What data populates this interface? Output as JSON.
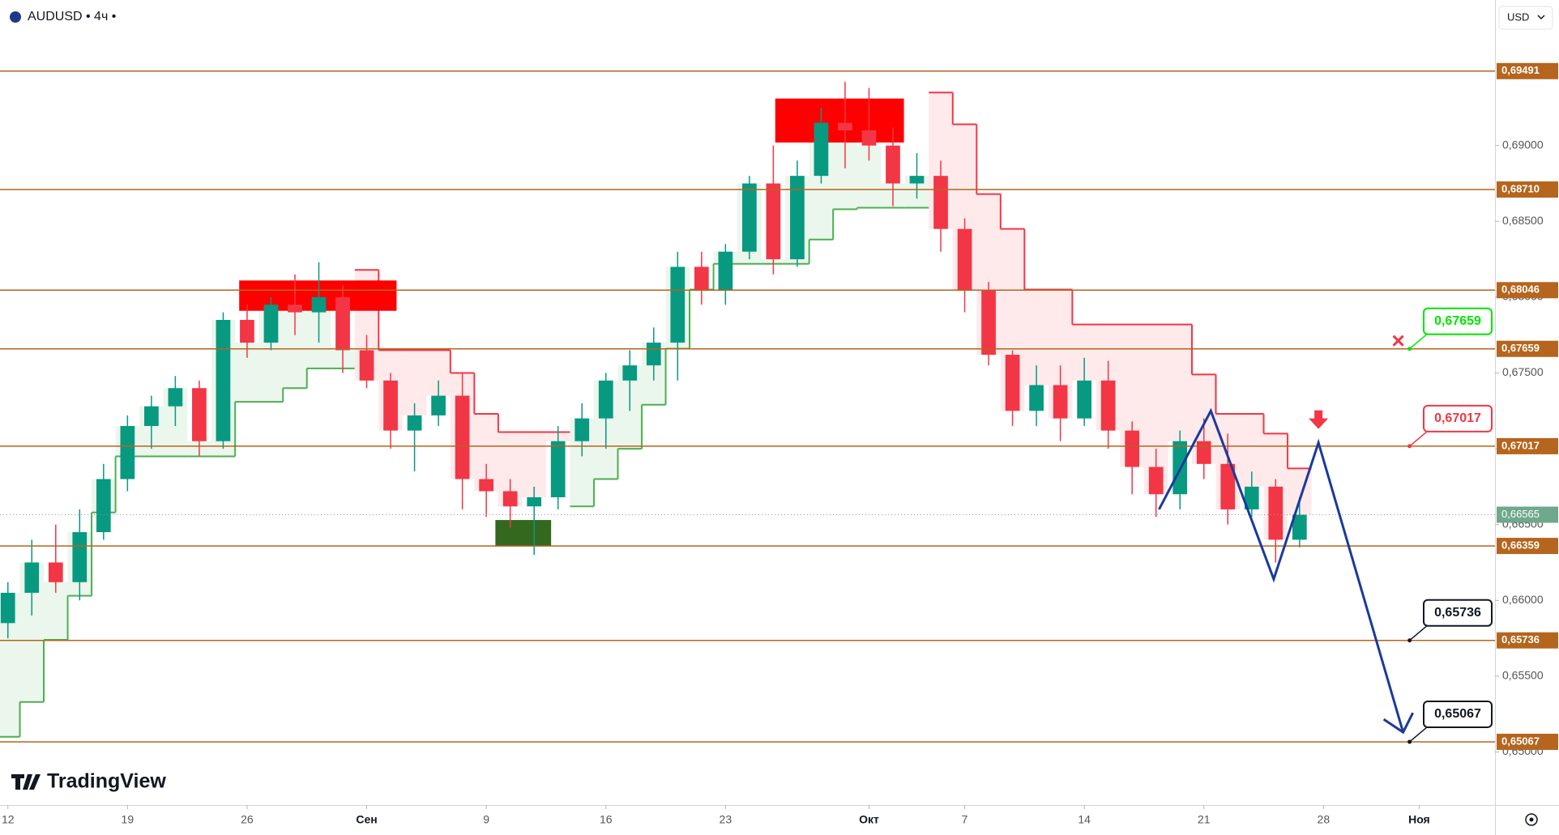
{
  "header": {
    "symbol": "AUDUSD • 4ч •",
    "currency": "USD",
    "brand": "TradingView"
  },
  "chart_data": {
    "type": "candlestick",
    "x": [
      0,
      1,
      2,
      3,
      4,
      5,
      6,
      7,
      8,
      9,
      10,
      11,
      12,
      13,
      14,
      15,
      16,
      17,
      18,
      19,
      20,
      21,
      22,
      23,
      24,
      25,
      26,
      27,
      28,
      29,
      30,
      31,
      32,
      33,
      34,
      35,
      36,
      37,
      38,
      39,
      40,
      41,
      42,
      43,
      44,
      45,
      46,
      47,
      48,
      49,
      50,
      51,
      52,
      53,
      54
    ],
    "candles": [
      [
        0.6585,
        0.6612,
        0.6575,
        0.6605
      ],
      [
        0.6605,
        0.664,
        0.659,
        0.6625
      ],
      [
        0.6625,
        0.665,
        0.6605,
        0.6612
      ],
      [
        0.6612,
        0.666,
        0.66,
        0.6645
      ],
      [
        0.6645,
        0.669,
        0.664,
        0.668
      ],
      [
        0.668,
        0.6722,
        0.6672,
        0.6715
      ],
      [
        0.6715,
        0.6735,
        0.67,
        0.6728
      ],
      [
        0.6728,
        0.6748,
        0.6715,
        0.674
      ],
      [
        0.674,
        0.6745,
        0.6695,
        0.6705
      ],
      [
        0.6705,
        0.679,
        0.67,
        0.6785
      ],
      [
        0.6785,
        0.6795,
        0.676,
        0.677
      ],
      [
        0.677,
        0.68,
        0.6765,
        0.6795
      ],
      [
        0.6795,
        0.6815,
        0.6775,
        0.679
      ],
      [
        0.679,
        0.6823,
        0.677,
        0.68
      ],
      [
        0.68,
        0.6808,
        0.675,
        0.6765
      ],
      [
        0.6765,
        0.6775,
        0.674,
        0.6745
      ],
      [
        0.6745,
        0.675,
        0.67,
        0.6712
      ],
      [
        0.6712,
        0.673,
        0.6685,
        0.6722
      ],
      [
        0.6722,
        0.6745,
        0.6715,
        0.6735
      ],
      [
        0.6735,
        0.675,
        0.666,
        0.668
      ],
      [
        0.668,
        0.669,
        0.6655,
        0.6672
      ],
      [
        0.6672,
        0.668,
        0.6648,
        0.6662
      ],
      [
        0.6662,
        0.6675,
        0.663,
        0.6668
      ],
      [
        0.6668,
        0.6715,
        0.666,
        0.6705
      ],
      [
        0.6705,
        0.673,
        0.6695,
        0.672
      ],
      [
        0.672,
        0.675,
        0.67,
        0.6745
      ],
      [
        0.6745,
        0.6765,
        0.6725,
        0.6755
      ],
      [
        0.6755,
        0.678,
        0.6745,
        0.677
      ],
      [
        0.677,
        0.683,
        0.6745,
        0.682
      ],
      [
        0.682,
        0.683,
        0.6795,
        0.6805
      ],
      [
        0.6805,
        0.6835,
        0.6795,
        0.683
      ],
      [
        0.683,
        0.688,
        0.6825,
        0.6875
      ],
      [
        0.6875,
        0.69,
        0.6815,
        0.6825
      ],
      [
        0.6825,
        0.689,
        0.682,
        0.688
      ],
      [
        0.688,
        0.6925,
        0.6875,
        0.6915
      ],
      [
        0.6915,
        0.6942,
        0.6885,
        0.691
      ],
      [
        0.691,
        0.6938,
        0.689,
        0.69
      ],
      [
        0.69,
        0.6912,
        0.686,
        0.6875
      ],
      [
        0.6875,
        0.6895,
        0.6865,
        0.688
      ],
      [
        0.688,
        0.689,
        0.683,
        0.6845
      ],
      [
        0.6845,
        0.6852,
        0.679,
        0.6805
      ],
      [
        0.6805,
        0.681,
        0.6755,
        0.6762
      ],
      [
        0.6762,
        0.6765,
        0.6715,
        0.6725
      ],
      [
        0.6725,
        0.6755,
        0.6715,
        0.6742
      ],
      [
        0.6742,
        0.6755,
        0.6705,
        0.672
      ],
      [
        0.672,
        0.676,
        0.6715,
        0.6745
      ],
      [
        0.6745,
        0.6758,
        0.67,
        0.6712
      ],
      [
        0.6712,
        0.6718,
        0.667,
        0.6688
      ],
      [
        0.6688,
        0.67,
        0.6655,
        0.667
      ],
      [
        0.667,
        0.6712,
        0.666,
        0.6705
      ],
      [
        0.6705,
        0.672,
        0.668,
        0.669
      ],
      [
        0.669,
        0.671,
        0.665,
        0.666
      ],
      [
        0.666,
        0.6685,
        0.6655,
        0.6675
      ],
      [
        0.6675,
        0.668,
        0.6625,
        0.664
      ],
      [
        0.664,
        0.6668,
        0.6635,
        0.66565
      ]
    ],
    "up_color": "#089981",
    "down_color": "#f23645",
    "trail_long": [
      0.651,
      0.6533,
      0.6574,
      0.6603,
      0.6658,
      0.6695,
      0.6695,
      0.6695,
      0.6695,
      0.6695,
      0.6731,
      0.6731,
      0.674,
      0.6753,
      0.6753,
      null,
      null,
      null,
      null,
      null,
      null,
      null,
      null,
      null,
      0.6662,
      0.668,
      0.67,
      0.6729,
      0.6766,
      0.6805,
      0.6822,
      0.6822,
      0.6822,
      0.6822,
      0.6838,
      0.6858,
      0.6859,
      0.6859,
      0.6859,
      null,
      null,
      null,
      null,
      null,
      null,
      null,
      null,
      null,
      null,
      null,
      null,
      null,
      null,
      null,
      null
    ],
    "trail_short": [
      null,
      null,
      null,
      null,
      null,
      null,
      null,
      null,
      null,
      null,
      null,
      null,
      null,
      null,
      null,
      0.6818,
      0.6765,
      0.6765,
      0.6765,
      0.675,
      0.6723,
      0.6711,
      0.6711,
      0.6711,
      null,
      null,
      null,
      null,
      null,
      null,
      null,
      null,
      null,
      null,
      null,
      null,
      null,
      null,
      null,
      0.6935,
      0.6914,
      0.6868,
      0.6845,
      0.6805,
      0.6805,
      0.6782,
      0.6782,
      0.6782,
      0.6782,
      0.6782,
      0.6749,
      0.6723,
      0.6723,
      0.671,
      0.6687
    ],
    "long_color": "#4caf50",
    "short_color": "#f23645",
    "zones": [
      {
        "x": [
          9.67,
          16.25
        ],
        "y": [
          0.6791,
          0.6811
        ],
        "color": "#ff0000"
      },
      {
        "x": [
          32.08,
          37.46
        ],
        "y": [
          0.6902,
          0.6931
        ],
        "color": "#ff0000"
      },
      {
        "x": [
          20.38,
          22.71
        ],
        "y": [
          0.6636,
          0.6653
        ],
        "color": "#33691e"
      }
    ],
    "levels": [
      {
        "value": 0.69491,
        "label": "0,69491"
      },
      {
        "value": 0.6871,
        "label": "0,68710"
      },
      {
        "value": 0.68046,
        "label": "0,68046"
      },
      {
        "value": 0.67659,
        "label": "0,67659"
      },
      {
        "value": 0.67017,
        "label": "0,67017"
      },
      {
        "value": 0.66359,
        "label": "0,66359"
      },
      {
        "value": 0.65736,
        "label": "0,65736"
      },
      {
        "value": 0.65067,
        "label": "0,65067"
      }
    ],
    "level_color": "#b5651d",
    "current_price": {
      "value": 0.66565,
      "label": "0,66565"
    },
    "projection": {
      "x": [
        48.125,
        50.29,
        52.92,
        54.79,
        58.33
      ],
      "y": [
        0.666,
        0.6725,
        0.6614,
        0.6704,
        0.6513
      ],
      "color": "#1a3a9c"
    },
    "callouts": [
      {
        "x": 58.6,
        "value": 0.67659,
        "label": "0,67659",
        "color": "#00e600"
      },
      {
        "x": 58.6,
        "value": 0.67017,
        "label": "0,67017",
        "color": "#f23645"
      },
      {
        "x": 58.6,
        "value": 0.65736,
        "label": "0,65736",
        "color": "#131722"
      },
      {
        "x": 58.6,
        "value": 0.65067,
        "label": "0,65067",
        "color": "#131722"
      }
    ],
    "xlim": [
      -0.33,
      62.17
    ],
    "ylim": [
      0.6465,
      0.6996
    ],
    "xticks": [
      {
        "value": 0,
        "label": "12"
      },
      {
        "value": 5,
        "label": "19"
      },
      {
        "value": 10,
        "label": "26"
      },
      {
        "value": 15,
        "label": "Сен"
      },
      {
        "value": 20,
        "label": "9"
      },
      {
        "value": 25,
        "label": "16"
      },
      {
        "value": 30,
        "label": "23"
      },
      {
        "value": 36,
        "label": "Окт"
      },
      {
        "value": 40,
        "label": "7"
      },
      {
        "value": 45,
        "label": "14"
      },
      {
        "value": 50,
        "label": "21"
      },
      {
        "value": 55,
        "label": "28"
      },
      {
        "value": 59,
        "label": "Ноя"
      }
    ],
    "yticks": [
      {
        "value": 0.65,
        "label": "0,65000"
      },
      {
        "value": 0.655,
        "label": "0,65500"
      },
      {
        "value": 0.66,
        "label": "0,66000"
      },
      {
        "value": 0.665,
        "label": "0,66500"
      },
      {
        "value": 0.67,
        "label": "0,67000"
      },
      {
        "value": 0.675,
        "label": "0,67500"
      },
      {
        "value": 0.68,
        "label": "0,68000"
      },
      {
        "value": 0.685,
        "label": "0,68500"
      },
      {
        "value": 0.69,
        "label": "0,69000"
      }
    ]
  }
}
